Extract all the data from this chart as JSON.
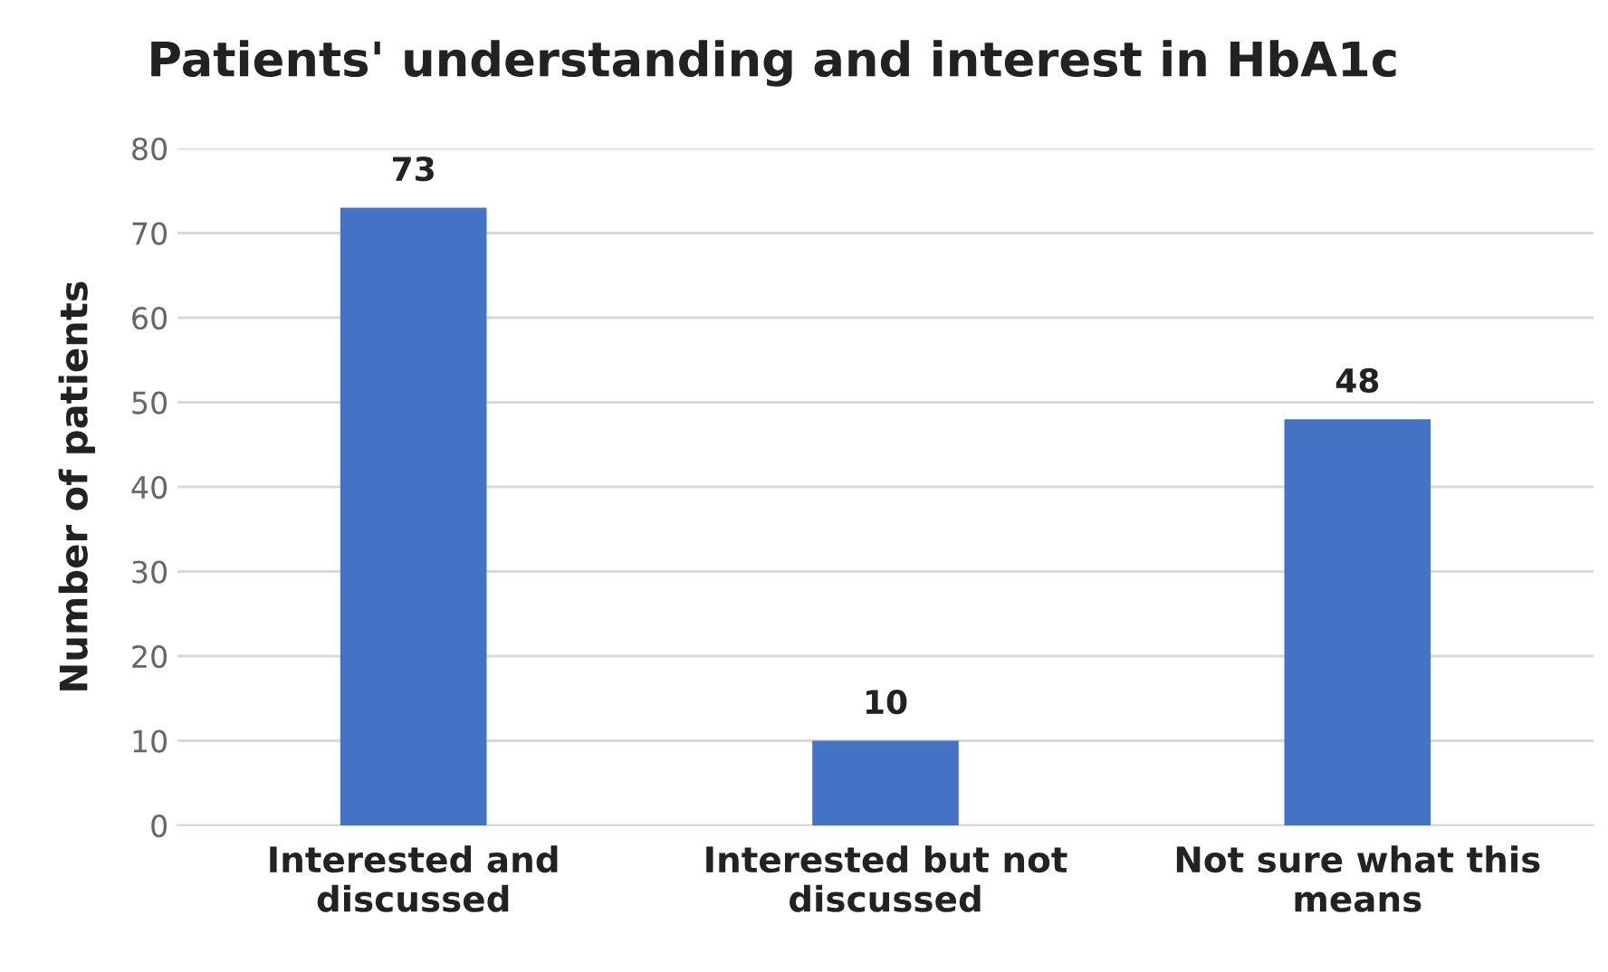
{
  "chart_data": {
    "type": "bar",
    "title": "Patients' understanding and interest in HbA1c",
    "ylabel": "Number of patients",
    "categories": [
      "Interested and\ndiscussed",
      "Interested but not\ndiscussed",
      "Not sure what this\nmeans"
    ],
    "values": [
      73,
      10,
      48
    ],
    "color": "#4472c4",
    "ylim": [
      0,
      80
    ],
    "yticks": [
      0,
      10,
      20,
      30,
      40,
      50,
      60,
      70,
      80
    ],
    "grid": "y",
    "data_labels": true
  }
}
